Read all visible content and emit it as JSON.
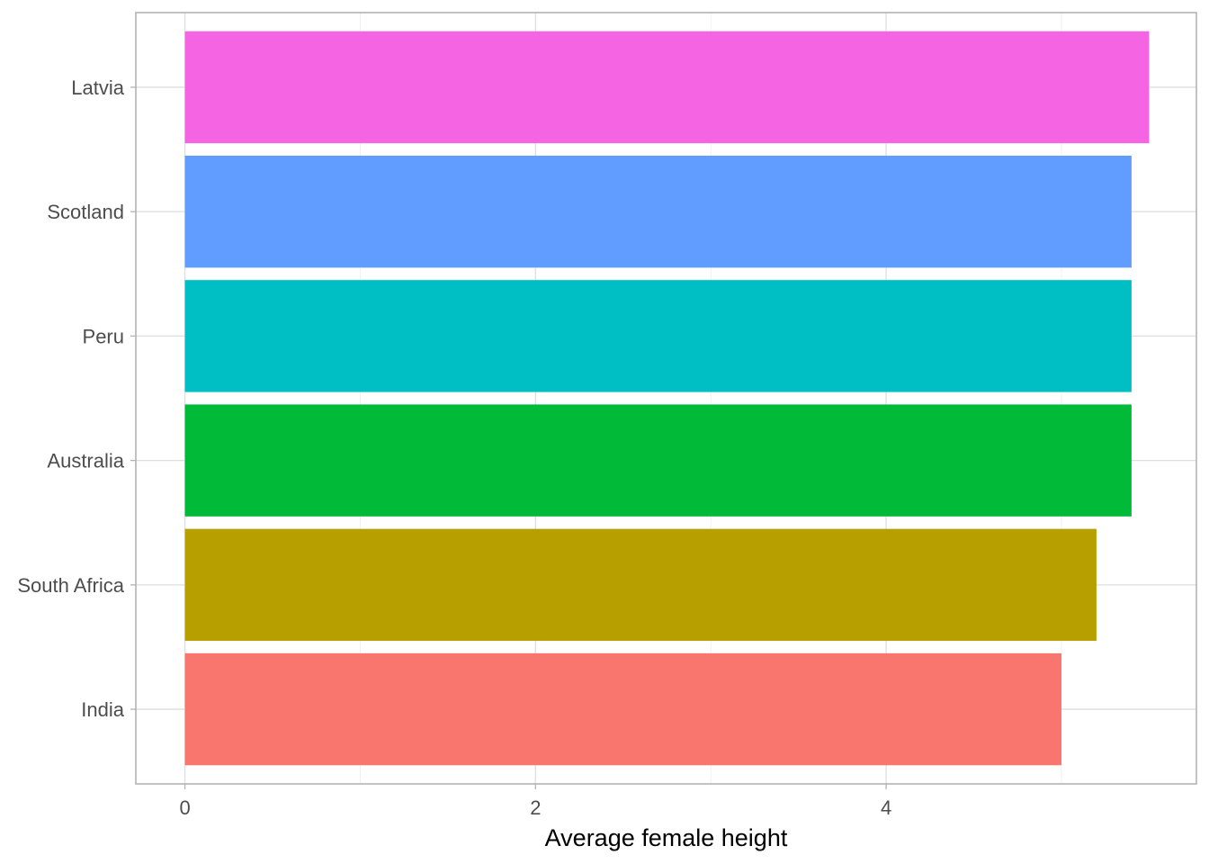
{
  "chart_data": {
    "type": "bar",
    "orientation": "horizontal",
    "categories": [
      "India",
      "South Africa",
      "Australia",
      "Peru",
      "Scotland",
      "Latvia"
    ],
    "values": [
      5.0,
      5.2,
      5.4,
      5.4,
      5.4,
      5.5
    ],
    "colors": [
      "#F8766D",
      "#B79F00",
      "#00BA38",
      "#00BFC4",
      "#619CFF",
      "#F564E3"
    ],
    "xlabel": "Average female height",
    "ylabel": "",
    "xlim": [
      -0.28,
      5.77
    ],
    "xticks": [
      0,
      2,
      4
    ],
    "xtick_labels": [
      "0",
      "2",
      "4"
    ],
    "grid": true,
    "legend": "none"
  }
}
